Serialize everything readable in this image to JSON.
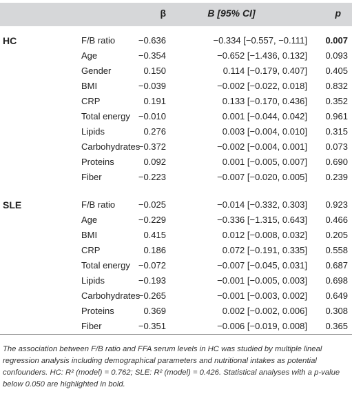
{
  "header": {
    "beta": "β",
    "b_ci": "B [95% CI]",
    "p": "p"
  },
  "groups": [
    {
      "name": "HC",
      "rows": [
        {
          "variable": "F/B ratio",
          "beta": "−0.636",
          "ci": "−0.334 [−0.557, −0.111]",
          "p": "0.007",
          "bold": true
        },
        {
          "variable": "Age",
          "beta": "−0.354",
          "ci": "−0.652 [−1.436, 0.132]",
          "p": "0.093"
        },
        {
          "variable": "Gender",
          "beta": "0.150",
          "ci": "0.114 [−0.179, 0.407]",
          "p": "0.405"
        },
        {
          "variable": "BMI",
          "beta": "−0.039",
          "ci": "−0.002 [−0.022, 0.018]",
          "p": "0.832"
        },
        {
          "variable": "CRP",
          "beta": "0.191",
          "ci": "0.133 [−0.170, 0.436]",
          "p": "0.352"
        },
        {
          "variable": "Total energy",
          "beta": "−0.010",
          "ci": "0.001 [−0.044, 0.042]",
          "p": "0.961"
        },
        {
          "variable": "Lipids",
          "beta": "0.276",
          "ci": "0.003 [−0.004, 0.010]",
          "p": "0.315"
        },
        {
          "variable": "Carbohydrates",
          "beta": "−0.372",
          "ci": "−0.002 [−0.004, 0.001]",
          "p": "0.073"
        },
        {
          "variable": "Proteins",
          "beta": "0.092",
          "ci": "0.001 [−0.005, 0.007]",
          "p": "0.690"
        },
        {
          "variable": "Fiber",
          "beta": "−0.223",
          "ci": "−0.007 [−0.020, 0.005]",
          "p": "0.239"
        }
      ]
    },
    {
      "name": "SLE",
      "rows": [
        {
          "variable": "F/B ratio",
          "beta": "−0.025",
          "ci": "−0.014 [−0.332, 0.303]",
          "p": "0.923"
        },
        {
          "variable": "Age",
          "beta": "−0.229",
          "ci": "−0.336 [−1.315, 0.643]",
          "p": "0.466"
        },
        {
          "variable": "BMI",
          "beta": "0.415",
          "ci": "0.012 [−0.008, 0.032]",
          "p": "0.205"
        },
        {
          "variable": "CRP",
          "beta": "0.186",
          "ci": "0.072 [−0.191, 0.335]",
          "p": "0.558"
        },
        {
          "variable": "Total energy",
          "beta": "−0.072",
          "ci": "−0.007 [−0.045, 0.031]",
          "p": "0.687"
        },
        {
          "variable": "Lipids",
          "beta": "−0.193",
          "ci": "−0.001 [−0.005, 0.003]",
          "p": "0.698"
        },
        {
          "variable": "Carbohydrates",
          "beta": "−0.265",
          "ci": "−0.001 [−0.003, 0.002]",
          "p": "0.649"
        },
        {
          "variable": "Proteins",
          "beta": "0.369",
          "ci": "0.002 [−0.002, 0.006]",
          "p": "0.308"
        },
        {
          "variable": "Fiber",
          "beta": "−0.351",
          "ci": "−0.006 [−0.019, 0.008]",
          "p": "0.365"
        }
      ]
    }
  ],
  "footnote": "The association between F/B ratio and FFA serum levels in HC was studied by multiple lineal regression analysis including demographical parameters and nutritional intakes as potential confounders. HC: R² (model) = 0.762; SLE: R² (model) = 0.426. Statistical analyses with a p-value below 0.050 are highlighted in bold."
}
